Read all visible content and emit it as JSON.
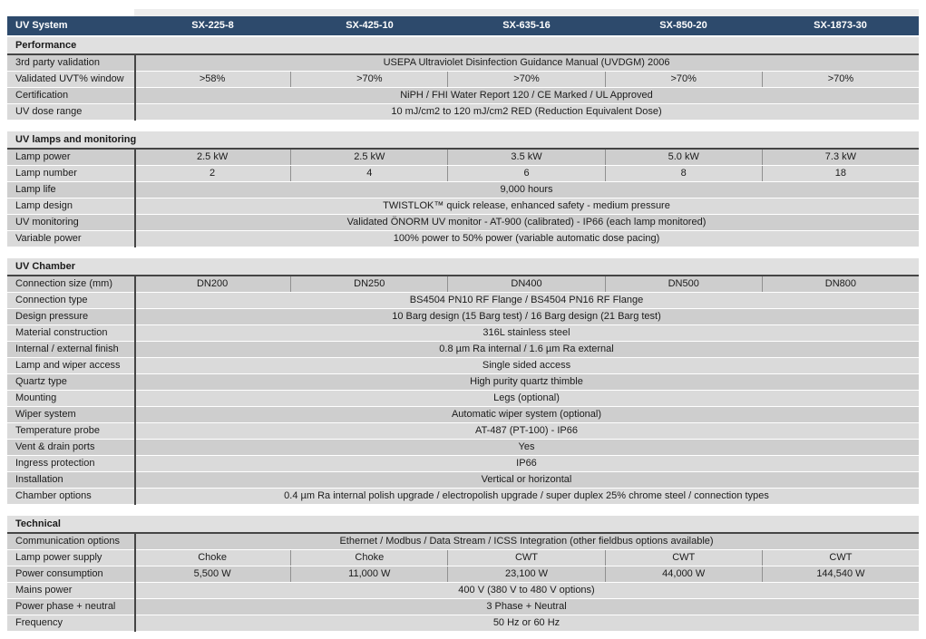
{
  "colors": {
    "header-bg": "#2d4a6c",
    "header-text": "#ffffff",
    "row-dark": "#cecece",
    "row-light": "#dadada",
    "section-title-bg": "#e0e0e0",
    "rule": "#454545",
    "label-divider": "#454545",
    "column-divider": "#909090",
    "text": "#1b1b1b",
    "page-bg": "#ffffff",
    "top-strip": "#ededed"
  },
  "table": {
    "header": {
      "label": "UV System",
      "columns": [
        "SX-225-8",
        "SX-425-10",
        "SX-635-16",
        "SX-850-20",
        "SX-1873-30"
      ]
    },
    "sections": [
      {
        "title": "Performance",
        "rows": [
          {
            "label": "3rd party validation",
            "span": "USEPA Ultraviolet Disinfection Guidance Manual (UVDGM) 2006"
          },
          {
            "label": "Validated UVT% window",
            "values": [
              ">58%",
              ">70%",
              ">70%",
              ">70%",
              ">70%"
            ]
          },
          {
            "label": "Certification",
            "span": "NiPH / FHI Water Report 120 / CE Marked / UL Approved"
          },
          {
            "label": "UV dose range",
            "span": "10 mJ/cm2 to 120 mJ/cm2  RED (Reduction Equivalent Dose)"
          }
        ]
      },
      {
        "title": "UV lamps and monitoring",
        "rows": [
          {
            "label": "Lamp power",
            "values": [
              "2.5 kW",
              "2.5 kW",
              "3.5 kW",
              "5.0 kW",
              "7.3 kW"
            ]
          },
          {
            "label": "Lamp number",
            "values": [
              "2",
              "4",
              "6",
              "8",
              "18"
            ]
          },
          {
            "label": "Lamp life",
            "span": "9,000 hours"
          },
          {
            "label": "Lamp design",
            "span": "TWISTLOK™ quick release, enhanced safety - medium pressure"
          },
          {
            "label": "UV monitoring",
            "span": "Validated ÖNORM UV monitor - AT-900 (calibrated) - IP66 (each lamp monitored)"
          },
          {
            "label": "Variable power",
            "span": "100% power to 50% power (variable automatic dose pacing)"
          }
        ]
      },
      {
        "title": "UV Chamber",
        "rows": [
          {
            "label": "Connection size (mm)",
            "values": [
              "DN200",
              "DN250",
              "DN400",
              "DN500",
              "DN800"
            ]
          },
          {
            "label": "Connection type",
            "span": "BS4504 PN10 RF Flange / BS4504 PN16 RF Flange"
          },
          {
            "label": "Design pressure",
            "span": "10 Barg design (15 Barg test)  / 16 Barg design (21 Barg test)"
          },
          {
            "label": "Material construction",
            "span": "316L stainless steel"
          },
          {
            "label": "Internal / external finish",
            "span": "0.8 µm Ra internal / 1.6 µm Ra external"
          },
          {
            "label": "Lamp and wiper access",
            "span": "Single sided access"
          },
          {
            "label": "Quartz type",
            "span": "High purity quartz thimble"
          },
          {
            "label": "Mounting",
            "span": "Legs (optional)"
          },
          {
            "label": "Wiper system",
            "span": "Automatic wiper system (optional)"
          },
          {
            "label": "Temperature probe",
            "span": "AT-487 (PT-100) - IP66"
          },
          {
            "label": "Vent & drain ports",
            "span": "Yes"
          },
          {
            "label": "Ingress protection",
            "span": "IP66"
          },
          {
            "label": "Installation",
            "span": "Vertical or horizontal"
          },
          {
            "label": "Chamber options",
            "span": "0.4 µm Ra internal polish upgrade / electropolish upgrade / super duplex 25% chrome steel / connection types"
          }
        ]
      },
      {
        "title": "Technical",
        "rows": [
          {
            "label": "Communication options",
            "span": "Ethernet / Modbus / Data Stream / ICSS Integration (other fieldbus options available)"
          },
          {
            "label": "Lamp power supply",
            "values": [
              "Choke",
              "Choke",
              "CWT",
              "CWT",
              "CWT"
            ]
          },
          {
            "label": "Power consumption",
            "values": [
              "5,500 W",
              "11,000 W",
              "23,100 W",
              "44,000 W",
              "144,540 W"
            ]
          },
          {
            "label": "Mains power",
            "span": "400 V  (380 V to 480 V options)"
          },
          {
            "label": "Power phase + neutral",
            "span": "3 Phase + Neutral"
          },
          {
            "label": "Frequency",
            "span": "50 Hz or 60 Hz"
          }
        ]
      }
    ]
  }
}
